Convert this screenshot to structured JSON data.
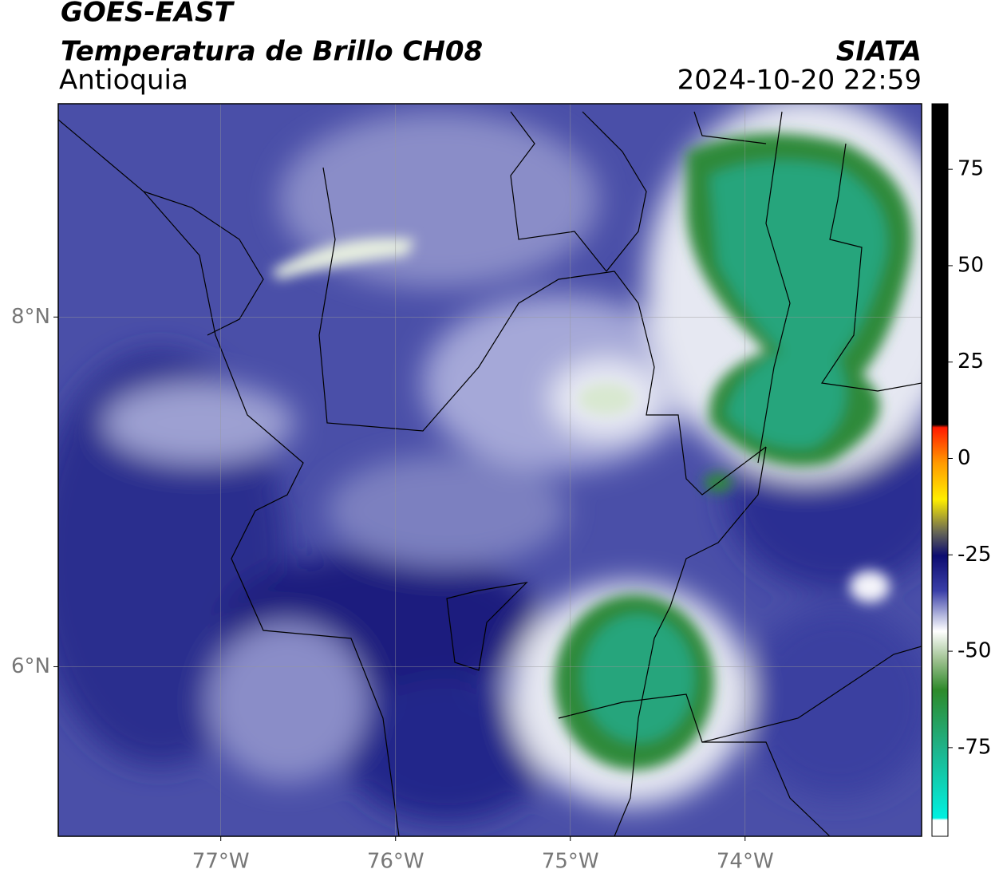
{
  "header": {
    "title": "GOES-EAST",
    "subtitle": "Temperatura de Brillo CH08",
    "region": "Antioquia",
    "source": "SIATA",
    "timestamp": "2024-10-20 22:59"
  },
  "map": {
    "xlim": [
      -77.93,
      -72.99
    ],
    "ylim": [
      5.03,
      9.22
    ],
    "xticks": [
      {
        "value": -77,
        "label": "77°W"
      },
      {
        "value": -76,
        "label": "76°W"
      },
      {
        "value": -75,
        "label": "75°W"
      },
      {
        "value": -74,
        "label": "74°W"
      }
    ],
    "yticks": [
      {
        "value": 8,
        "label": "8°N"
      },
      {
        "value": 6,
        "label": "6°N"
      }
    ],
    "grid": true
  },
  "colorbar": {
    "lim": [
      -98,
      92
    ],
    "ticks": [
      75,
      50,
      25,
      0,
      -25,
      -50,
      -75
    ]
  }
}
